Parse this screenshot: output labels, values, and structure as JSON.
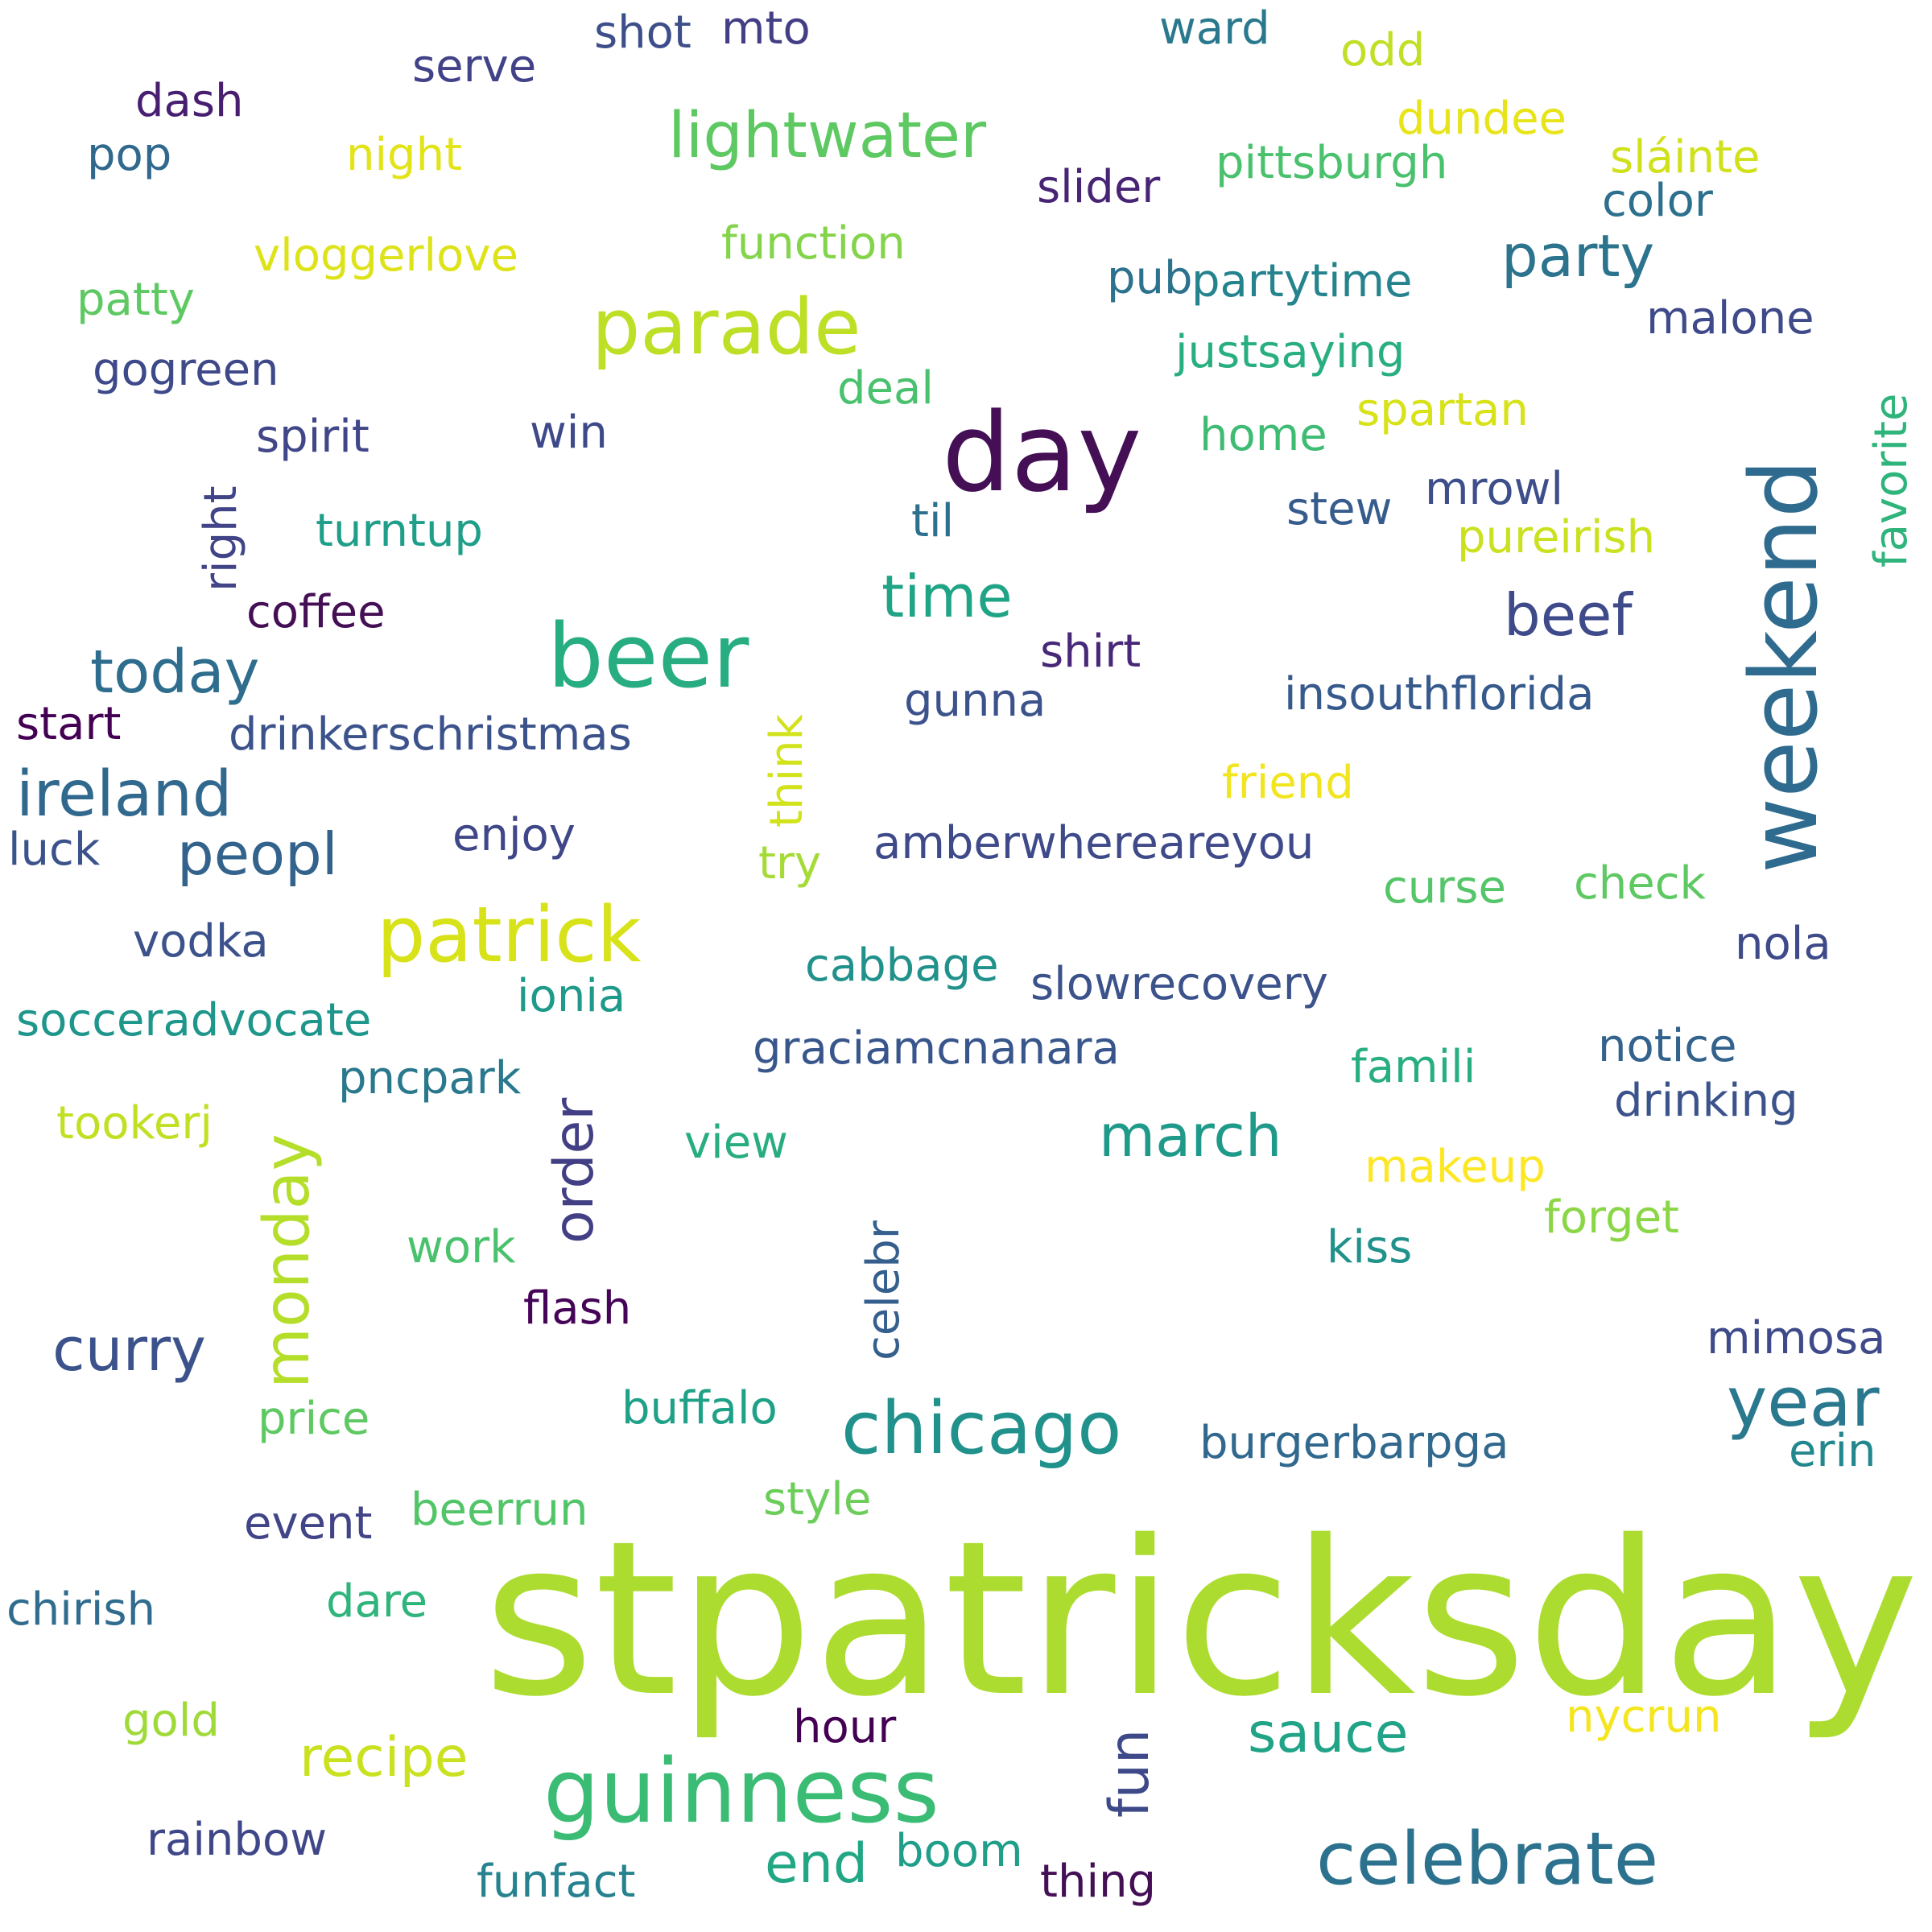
{
  "words": [
    {
      "text": "stpatricksday",
      "color": "#addc30"
    },
    {
      "text": "day",
      "color": "#440f55"
    },
    {
      "text": "weekend",
      "color": "#2f6b8e"
    },
    {
      "text": "guinness",
      "color": "#3bbc75"
    },
    {
      "text": "beer",
      "color": "#27ad81"
    },
    {
      "text": "parade",
      "color": "#bddf26"
    },
    {
      "text": "patrick",
      "color": "#d8e219"
    },
    {
      "text": "chicago",
      "color": "#21918c"
    },
    {
      "text": "celebrate",
      "color": "#2c728e"
    },
    {
      "text": "lightwater",
      "color": "#5ec962"
    },
    {
      "text": "monday",
      "color": "#b5de2b"
    },
    {
      "text": "year",
      "color": "#2a788e"
    },
    {
      "text": "ireland",
      "color": "#31688e"
    },
    {
      "text": "today",
      "color": "#2e6d8e"
    },
    {
      "text": "curry",
      "color": "#3b528b"
    },
    {
      "text": "time",
      "color": "#20a486"
    },
    {
      "text": "party",
      "color": "#2c738e"
    },
    {
      "text": "beef",
      "color": "#3e4a89"
    },
    {
      "text": "peopl",
      "color": "#33638d"
    },
    {
      "text": "march",
      "color": "#1f9a8a"
    },
    {
      "text": "recipe",
      "color": "#cae11f"
    },
    {
      "text": "sauce",
      "color": "#20a386"
    },
    {
      "text": "end",
      "color": "#22a785"
    },
    {
      "text": "fun",
      "color": "#3e4989"
    },
    {
      "text": "order",
      "color": "#423f85"
    },
    {
      "text": "function",
      "color": "#84d44b"
    },
    {
      "text": "pittsburgh",
      "color": "#4ac16d"
    },
    {
      "text": "justsaying",
      "color": "#29af7f"
    },
    {
      "text": "partytime",
      "color": "#25838e"
    },
    {
      "text": "insouthflorida",
      "color": "#375a8c"
    },
    {
      "text": "drinkerschristmas",
      "color": "#3b528b"
    },
    {
      "text": "amberwhereareyou",
      "color": "#3e4a89"
    },
    {
      "text": "socceradvocate",
      "color": "#1f968b"
    },
    {
      "text": "slowrecovery",
      "color": "#3b528b"
    },
    {
      "text": "graciamcnanara",
      "color": "#39568c"
    },
    {
      "text": "burgerbarpga",
      "color": "#31688e"
    },
    {
      "text": "vloggerlove",
      "color": "#dde318"
    },
    {
      "text": "shot",
      "color": "#3d4e8a"
    },
    {
      "text": "mto",
      "color": "#433e85"
    },
    {
      "text": "ward",
      "color": "#2a788e"
    },
    {
      "text": "odd",
      "color": "#c0df25"
    },
    {
      "text": "serve",
      "color": "#414287"
    },
    {
      "text": "dash",
      "color": "#481f70"
    },
    {
      "text": "dundee",
      "color": "#e7e419"
    },
    {
      "text": "sláinte",
      "color": "#d0e11c"
    },
    {
      "text": "pop",
      "color": "#31688e"
    },
    {
      "text": "night",
      "color": "#e2e418"
    },
    {
      "text": "slider",
      "color": "#482475"
    },
    {
      "text": "color",
      "color": "#2d708e"
    },
    {
      "text": "patty",
      "color": "#5ec962"
    },
    {
      "text": "pub",
      "color": "#2c728e"
    },
    {
      "text": "malone",
      "color": "#3e4a89"
    },
    {
      "text": "gogreen",
      "color": "#3e4989"
    },
    {
      "text": "deal",
      "color": "#4ac16d"
    },
    {
      "text": "favorite",
      "color": "#2fb47c"
    },
    {
      "text": "spirit",
      "color": "#404688"
    },
    {
      "text": "win",
      "color": "#3e4989"
    },
    {
      "text": "home",
      "color": "#3fbc73"
    },
    {
      "text": "spartan",
      "color": "#d8e219"
    },
    {
      "text": "right",
      "color": "#414487"
    },
    {
      "text": "mrowl",
      "color": "#3d4e8a"
    },
    {
      "text": "stew",
      "color": "#365c8d"
    },
    {
      "text": "turntup",
      "color": "#1f9e89"
    },
    {
      "text": "til",
      "color": "#2d708e"
    },
    {
      "text": "pureirish",
      "color": "#cae11f"
    },
    {
      "text": "coffee",
      "color": "#440f55"
    },
    {
      "text": "shirt",
      "color": "#482878"
    },
    {
      "text": "think",
      "color": "#d2e21b"
    },
    {
      "text": "gunna",
      "color": "#3b528b"
    },
    {
      "text": "start",
      "color": "#440154"
    },
    {
      "text": "friend",
      "color": "#f1e51d"
    },
    {
      "text": "luck",
      "color": "#3b528b"
    },
    {
      "text": "enjoy",
      "color": "#3f4788"
    },
    {
      "text": "try",
      "color": "#a5db36"
    },
    {
      "text": "curse",
      "color": "#54c568"
    },
    {
      "text": "check",
      "color": "#5ec962"
    },
    {
      "text": "vodka",
      "color": "#3b528b"
    },
    {
      "text": "nola",
      "color": "#3e4a89"
    },
    {
      "text": "cabbage",
      "color": "#21918c"
    },
    {
      "text": "ionia",
      "color": "#1f9a8a"
    },
    {
      "text": "notice",
      "color": "#33638d"
    },
    {
      "text": "pncpark",
      "color": "#2a788e"
    },
    {
      "text": "famili",
      "color": "#28ae80"
    },
    {
      "text": "drinking",
      "color": "#3b528b"
    },
    {
      "text": "tookerj",
      "color": "#c2df23"
    },
    {
      "text": "view",
      "color": "#27ad81"
    },
    {
      "text": "makeup",
      "color": "#fde725"
    },
    {
      "text": "celebr",
      "color": "#355f8d"
    },
    {
      "text": "work",
      "color": "#4ac16d"
    },
    {
      "text": "kiss",
      "color": "#21918c"
    },
    {
      "text": "forget",
      "color": "#8bd646"
    },
    {
      "text": "flash",
      "color": "#450457"
    },
    {
      "text": "mimosa",
      "color": "#3e4a89"
    },
    {
      "text": "price",
      "color": "#5ec962"
    },
    {
      "text": "buffalo",
      "color": "#1fa187"
    },
    {
      "text": "erin",
      "color": "#23888e"
    },
    {
      "text": "style",
      "color": "#6ccd5a"
    },
    {
      "text": "beerrun",
      "color": "#52c569"
    },
    {
      "text": "event",
      "color": "#414487"
    },
    {
      "text": "chirish",
      "color": "#2f6c8e"
    },
    {
      "text": "dare",
      "color": "#2fb47c"
    },
    {
      "text": "gold",
      "color": "#a0da39"
    },
    {
      "text": "hour",
      "color": "#440154"
    },
    {
      "text": "nycrun",
      "color": "#f4e61e"
    },
    {
      "text": "rainbow",
      "color": "#3f4788"
    },
    {
      "text": "boom",
      "color": "#1f9e89"
    },
    {
      "text": "funfact",
      "color": "#26828e"
    },
    {
      "text": "thing",
      "color": "#440f55"
    }
  ]
}
